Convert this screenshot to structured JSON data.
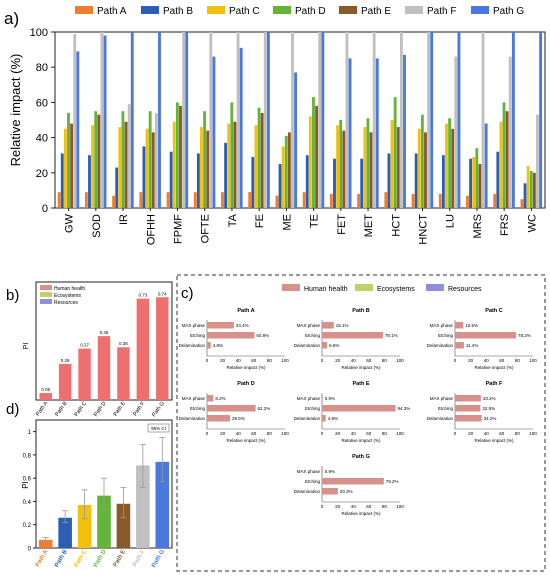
{
  "panel_labels": {
    "a": "a)",
    "b": "b)",
    "c": "c)",
    "d": "d)"
  },
  "colors": {
    "Path A": "#ee7d31",
    "Path B": "#2a5fb4",
    "Path C": "#f2c110",
    "Path D": "#64b43a",
    "Path E": "#8b5a2b",
    "Path F": "#c0c0c0",
    "Path G": "#4a78e0",
    "human_health": "#d8908a",
    "ecosystems": "#c3cf6a",
    "resources": "#8f8fdc",
    "pi_bar": "#ef6e6e"
  },
  "chart_data": [
    {
      "id": "a",
      "type": "bar",
      "ylabel": "Relative impact (%)",
      "ylim": [
        0,
        100
      ],
      "yticks": [
        0,
        20,
        40,
        60,
        80,
        100
      ],
      "categories": [
        "GW",
        "SOD",
        "IR",
        "OFHH",
        "FPMF",
        "OFTE",
        "TA",
        "FE",
        "ME",
        "TE",
        "FET",
        "MET",
        "HCT",
        "HNCT",
        "LU",
        "MRS",
        "FRS",
        "WC"
      ],
      "legend_position": "top",
      "series": [
        {
          "name": "Path A",
          "values": [
            9,
            9,
            7,
            9,
            9,
            9,
            9,
            9,
            7,
            9,
            8,
            8,
            9,
            8,
            8,
            7,
            8,
            5
          ]
        },
        {
          "name": "Path B",
          "values": [
            31,
            30,
            23,
            35,
            32,
            31,
            37,
            29,
            25,
            30,
            28,
            28,
            31,
            31,
            30,
            28,
            32,
            14
          ]
        },
        {
          "name": "Path C",
          "values": [
            45,
            47,
            46,
            45,
            49,
            46,
            48,
            47,
            35,
            52,
            47,
            46,
            50,
            45,
            48,
            29,
            49,
            24
          ]
        },
        {
          "name": "Path D",
          "values": [
            54,
            55,
            55,
            55,
            60,
            55,
            60,
            57,
            41,
            63,
            50,
            51,
            63,
            53,
            51,
            34,
            60,
            21
          ]
        },
        {
          "name": "Path E",
          "values": [
            48,
            53,
            49,
            43,
            58,
            44,
            49,
            54,
            43,
            58,
            44,
            43,
            46,
            43,
            45,
            25,
            55,
            20
          ]
        },
        {
          "name": "Path F",
          "values": [
            99,
            100,
            59,
            54,
            100,
            100,
            100,
            100,
            100,
            100,
            100,
            100,
            100,
            100,
            86,
            100,
            86,
            53
          ]
        },
        {
          "name": "Path G",
          "values": [
            89,
            98,
            100,
            100,
            100,
            86,
            91,
            100,
            77,
            100,
            85,
            85,
            87,
            100,
            100,
            48,
            100,
            100
          ]
        }
      ]
    },
    {
      "id": "b",
      "type": "bar",
      "ylabel": "PI",
      "categories": [
        "Path A",
        "Path B",
        "Path C",
        "Path D",
        "Path E",
        "Path F",
        "Path G"
      ],
      "legend": [
        "Human health",
        "Ecosystems",
        "Resources"
      ],
      "values": [
        0.05,
        0.26,
        0.37,
        0.46,
        0.38,
        0.73,
        0.74
      ],
      "data_labels": [
        "0.05",
        "0.26",
        "0.37",
        "0.46",
        "0.38",
        "0.73",
        "0.74"
      ]
    },
    {
      "id": "c",
      "type": "bar",
      "legend": [
        "Human health",
        "Ecosystems",
        "Resources"
      ],
      "xlabel": "Relative impact (%)",
      "xticks": [
        0,
        20,
        40,
        60,
        80,
        100
      ],
      "rows": [
        "MAX phase",
        "Etching",
        "Delamination"
      ],
      "paths": [
        {
          "title": "Path A",
          "values": [
            34.4,
            60.8,
            4.8
          ],
          "labels": [
            "34.4%",
            "60.8%",
            "4.8%"
          ]
        },
        {
          "title": "Path B",
          "values": [
            15.1,
            78.1,
            6.6
          ],
          "labels": [
            "15.1%",
            "78.1%",
            "6.6%"
          ]
        },
        {
          "title": "Path C",
          "values": [
            10.5,
            78.2,
            11.4
          ],
          "labels": [
            "10.5%",
            "78.2%",
            "11.4%"
          ]
        },
        {
          "title": "Path D",
          "values": [
            8.2,
            62.2,
            29.5
          ],
          "labels": [
            "8.2%",
            "62.2%",
            "29.5%"
          ]
        },
        {
          "title": "Path E",
          "values": [
            0.9,
            94.3,
            4.8
          ],
          "labels": [
            "0.9%",
            "94.3%",
            "4.8%"
          ]
        },
        {
          "title": "Path F",
          "values": [
            33.2,
            32.5,
            34.2
          ],
          "labels": [
            "33.2%",
            "32.5%",
            "34.2%"
          ]
        },
        {
          "title": "Path G",
          "values": [
            0.9,
            79.2,
            20.3
          ],
          "labels": [
            "0.9%",
            "79.2%",
            "20.3%"
          ]
        }
      ]
    },
    {
      "id": "d",
      "type": "bar",
      "ylabel": "PI",
      "yticks": [
        0,
        0.2,
        0.4,
        0.6,
        0.8,
        1
      ],
      "yticklabels": [
        "0",
        "0.2",
        "0.4",
        "0.6",
        "0.8",
        "1"
      ],
      "ylim": [
        0,
        1.1
      ],
      "legend": [
        "95% CI"
      ],
      "categories": [
        "Path A",
        "Path B",
        "Path C",
        "Path D",
        "Path E",
        "Path F",
        "Path G"
      ],
      "series_colors": [
        "#ee7d31",
        "#2a5fb4",
        "#f2c110",
        "#64b43a",
        "#8b5a2b",
        "#c0c0c0",
        "#4a78e0"
      ],
      "values": [
        0.07,
        0.26,
        0.37,
        0.45,
        0.38,
        0.71,
        0.74
      ],
      "ci_low": [
        0.05,
        0.22,
        0.25,
        0.33,
        0.26,
        0.52,
        0.57
      ],
      "ci_high": [
        0.09,
        0.32,
        0.5,
        0.6,
        0.52,
        0.89,
        0.95
      ]
    }
  ]
}
